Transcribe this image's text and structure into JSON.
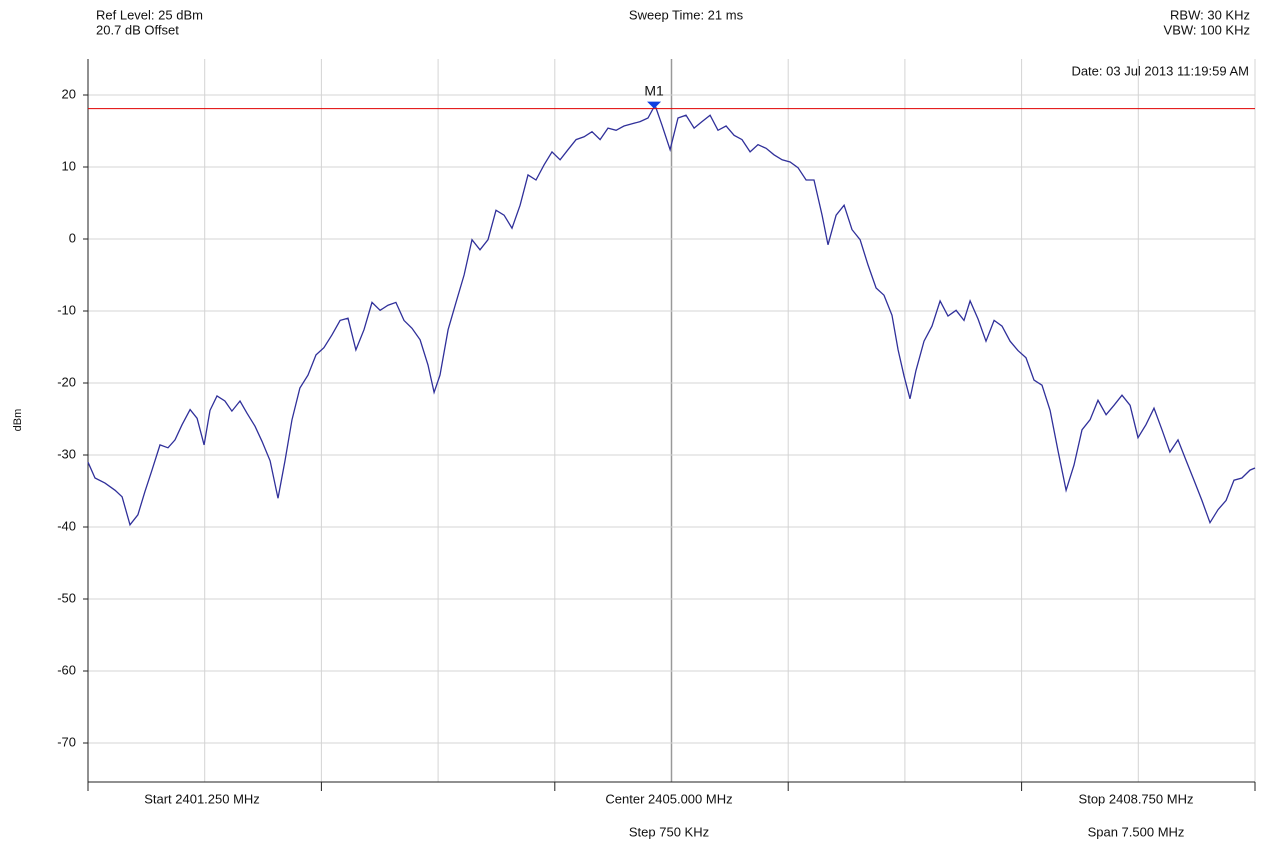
{
  "chart_data": {
    "type": "line",
    "ref_level": "Ref Level: 25 dBm",
    "offset": "20.7 dB Offset",
    "sweep_time": "Sweep Time: 21 ms",
    "rbw": "RBW: 30 KHz",
    "vbw": "VBW: 100 KHz",
    "date": "Date: 03 Jul 2013 11:19:59 AM",
    "y_label": "dBm",
    "start_label": "Start 2401.250 MHz",
    "center_label": "Center 2405.000 MHz",
    "stop_label": "Stop 2408.750 MHz",
    "step_label": "Step 750 KHz",
    "span_label": "Span 7.500 MHz",
    "xlim": [
      2401.25,
      2408.75
    ],
    "xticks": [
      2401.25,
      2402.0,
      2402.75,
      2403.5,
      2404.25,
      2405.0,
      2405.75,
      2406.5,
      2407.25,
      2408.0,
      2408.75
    ],
    "ylim": [
      -75,
      25
    ],
    "yticks": [
      20,
      10,
      0,
      -10,
      -20,
      -30,
      -40,
      -50,
      -60,
      -70
    ],
    "grid": true,
    "color": "#30309a",
    "ref_line": {
      "y": 18.1,
      "color": "#e00000"
    },
    "marker": {
      "label": "M1",
      "x": 2404.888,
      "y": 18.1,
      "color": "#1040e0"
    },
    "x": [
      2401.25,
      2401.295,
      2401.359,
      2401.424,
      2401.469,
      2401.52,
      2401.571,
      2401.616,
      2401.661,
      2401.713,
      2401.764,
      2401.809,
      2401.854,
      2401.906,
      2401.951,
      2401.996,
      2402.034,
      2402.079,
      2402.13,
      2402.175,
      2402.227,
      2402.272,
      2402.323,
      2402.368,
      2402.42,
      2402.471,
      2402.516,
      2402.561,
      2402.612,
      2402.664,
      2402.715,
      2402.766,
      2402.818,
      2402.87,
      2402.921,
      2402.972,
      2403.024,
      2403.075,
      2403.127,
      2403.178,
      2403.229,
      2403.281,
      2403.332,
      2403.384,
      2403.435,
      2403.474,
      2403.512,
      2403.564,
      2403.615,
      2403.667,
      2403.718,
      2403.769,
      2403.821,
      2403.872,
      2403.924,
      2403.975,
      2404.027,
      2404.078,
      2404.129,
      2404.181,
      2404.232,
      2404.284,
      2404.335,
      2404.387,
      2404.438,
      2404.489,
      2404.541,
      2404.592,
      2404.644,
      2404.695,
      2404.747,
      2404.798,
      2404.849,
      2404.894,
      2404.939,
      2404.991,
      2405.042,
      2405.093,
      2405.145,
      2405.196,
      2405.248,
      2405.299,
      2405.351,
      2405.402,
      2405.453,
      2405.505,
      2405.556,
      2405.608,
      2405.659,
      2405.711,
      2405.762,
      2405.813,
      2405.865,
      2405.916,
      2405.968,
      2406.006,
      2406.058,
      2406.109,
      2406.16,
      2406.212,
      2406.263,
      2406.315,
      2406.366,
      2406.417,
      2406.456,
      2406.494,
      2406.533,
      2406.571,
      2406.623,
      2406.674,
      2406.726,
      2406.777,
      2406.829,
      2406.88,
      2406.919,
      2406.97,
      2407.021,
      2407.073,
      2407.124,
      2407.176,
      2407.227,
      2407.278,
      2407.33,
      2407.381,
      2407.433,
      2407.484,
      2407.536,
      2407.587,
      2407.638,
      2407.69,
      2407.741,
      2407.793,
      2407.844,
      2407.895,
      2407.947,
      2407.998,
      2408.049,
      2408.101,
      2408.152,
      2408.203,
      2408.255,
      2408.306,
      2408.358,
      2408.409,
      2408.461,
      2408.512,
      2408.564,
      2408.615,
      2408.666,
      2408.718,
      2408.75
    ],
    "values": [
      -31.0,
      -33.2,
      -33.9,
      -34.9,
      -35.8,
      -39.7,
      -38.3,
      -35.1,
      -32.1,
      -28.6,
      -29.0,
      -27.9,
      -25.8,
      -23.7,
      -24.9,
      -28.6,
      -23.8,
      -21.8,
      -22.5,
      -23.9,
      -22.5,
      -24.2,
      -26.0,
      -28.1,
      -30.8,
      -36.0,
      -30.8,
      -25.1,
      -20.7,
      -18.9,
      -16.1,
      -15.1,
      -13.3,
      -11.3,
      -11.0,
      -15.4,
      -12.6,
      -8.8,
      -9.9,
      -9.2,
      -8.8,
      -11.3,
      -12.4,
      -14.0,
      -17.5,
      -21.3,
      -18.9,
      -12.6,
      -8.8,
      -5.0,
      -0.1,
      -1.5,
      -0.1,
      4.0,
      3.3,
      1.5,
      4.7,
      8.9,
      8.2,
      10.3,
      12.1,
      11.0,
      12.4,
      13.8,
      14.2,
      14.9,
      13.8,
      15.4,
      15.1,
      15.7,
      16.0,
      16.3,
      16.8,
      18.6,
      15.8,
      12.4,
      16.8,
      17.2,
      15.4,
      16.3,
      17.2,
      15.1,
      15.7,
      14.4,
      13.8,
      12.1,
      13.1,
      12.6,
      11.7,
      11.0,
      10.7,
      9.9,
      8.2,
      8.2,
      3.3,
      -0.8,
      3.3,
      4.7,
      1.3,
      -0.1,
      -3.6,
      -6.8,
      -7.8,
      -10.6,
      -15.4,
      -19.0,
      -22.2,
      -18.3,
      -14.2,
      -12.1,
      -8.6,
      -10.7,
      -9.9,
      -11.3,
      -8.6,
      -11.1,
      -14.2,
      -11.3,
      -12.1,
      -14.2,
      -15.5,
      -16.5,
      -19.6,
      -20.3,
      -23.8,
      -29.4,
      -34.9,
      -31.4,
      -26.5,
      -25.1,
      -22.4,
      -24.4,
      -23.1,
      -21.7,
      -23.1,
      -27.6,
      -25.8,
      -23.5,
      -26.5,
      -29.6,
      -27.9,
      -30.7,
      -33.5,
      -36.3,
      -39.4,
      -37.6,
      -36.3,
      -33.5,
      -33.2,
      -32.1,
      -31.8
    ]
  }
}
